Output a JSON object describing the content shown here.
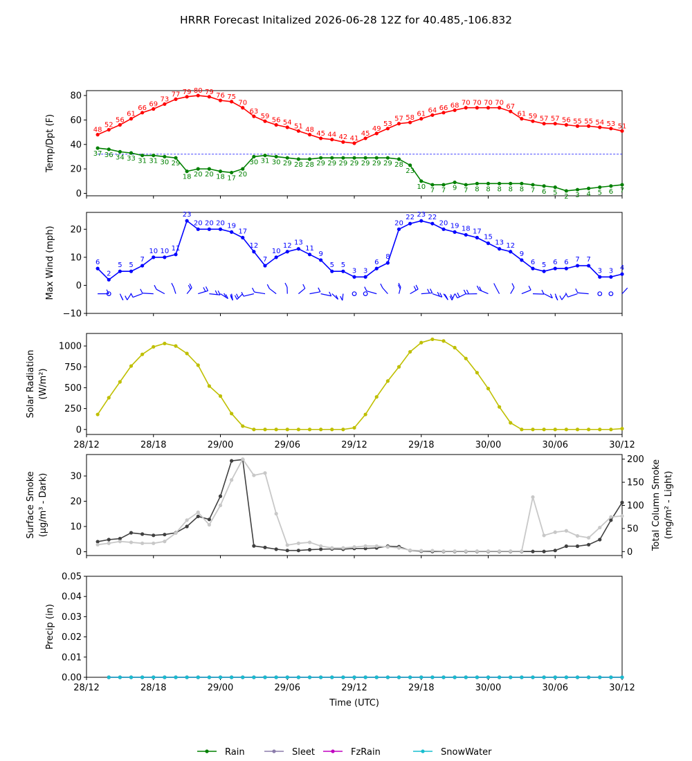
{
  "title": "HRRR Forecast Initalized 2026-06-28 12Z for 40.485,-106.832",
  "x_ticks": [
    "28/12",
    "28/18",
    "29/00",
    "29/06",
    "29/12",
    "29/18",
    "30/00",
    "30/06",
    "30/12"
  ],
  "x_label": "Time (UTC)",
  "legend": [
    {
      "name": "Rain",
      "color": "#008000"
    },
    {
      "name": "Sleet",
      "color": "#8b7cab"
    },
    {
      "name": "FzRain",
      "color": "#c000c0"
    },
    {
      "name": "SnowWater",
      "color": "#17becf"
    }
  ],
  "chart_data": [
    {
      "type": "line",
      "ylabel": "Temp/Dpt (F)",
      "ylim": [
        -2,
        84
      ],
      "yticks": [
        "0",
        "20",
        "40",
        "60",
        "80"
      ],
      "x_hours": [
        1,
        2,
        3,
        4,
        5,
        6,
        7,
        8,
        9,
        10,
        11,
        12,
        13,
        14,
        15,
        16,
        17,
        18,
        19,
        20,
        21,
        22,
        23,
        24,
        25,
        26,
        27,
        28,
        29,
        30,
        31,
        32,
        33,
        34,
        35,
        36,
        37,
        38,
        39,
        40,
        41,
        42,
        43,
        44,
        45,
        46,
        47,
        48
      ],
      "series": [
        {
          "name": "Temp",
          "color": "#ff0000",
          "values": [
            48,
            52,
            56,
            61,
            66,
            69,
            73,
            77,
            79,
            80,
            79,
            76,
            75,
            70,
            63,
            59,
            56,
            54,
            51,
            48,
            45,
            44,
            42,
            41,
            45,
            49,
            53,
            57,
            58,
            61,
            64,
            66,
            68,
            70,
            70,
            70,
            70,
            67,
            61,
            59,
            57,
            57,
            56,
            55,
            55,
            54,
            53,
            51
          ]
        },
        {
          "name": "Dewpoint",
          "color": "#008000",
          "values": [
            37,
            36,
            34,
            33,
            31,
            31,
            30,
            29,
            18,
            20,
            20,
            18,
            17,
            20,
            30,
            31,
            30,
            29,
            28,
            28,
            29,
            29,
            29,
            29,
            29,
            29,
            29,
            28,
            23,
            10,
            7,
            7,
            9,
            7,
            8,
            8,
            8,
            8,
            8,
            7,
            6,
            5,
            2,
            3,
            4,
            5,
            6,
            7
          ]
        }
      ],
      "reference_line": {
        "value": 32,
        "color": "#0000ff"
      }
    },
    {
      "type": "line",
      "ylabel": "Max Wind (mph)",
      "ylim": [
        -10,
        26
      ],
      "yticks": [
        "−10",
        "0",
        "10",
        "20"
      ],
      "x_hours": [
        1,
        2,
        3,
        4,
        5,
        6,
        7,
        8,
        9,
        10,
        11,
        12,
        13,
        14,
        15,
        16,
        17,
        18,
        19,
        20,
        21,
        22,
        23,
        24,
        25,
        26,
        27,
        28,
        29,
        30,
        31,
        32,
        33,
        34,
        35,
        36,
        37,
        38,
        39,
        40,
        41,
        42,
        43,
        44,
        45,
        46,
        47,
        48
      ],
      "series": [
        {
          "name": "Max Wind",
          "color": "#0000ff",
          "values": [
            6,
            2,
            5,
            5,
            7,
            10,
            10,
            11,
            23,
            20,
            20,
            20,
            19,
            17,
            12,
            7,
            10,
            12,
            13,
            11,
            9,
            5,
            5,
            3,
            3,
            6,
            8,
            20,
            22,
            23,
            22,
            20,
            19,
            18,
            17,
            15,
            13,
            12,
            9,
            6,
            5,
            6,
            6,
            7,
            7,
            3,
            3,
            4
          ]
        }
      ],
      "wind_barbs": {
        "level": -3,
        "color": "#0000ff"
      }
    },
    {
      "type": "line",
      "ylabel": "Solar Radiation",
      "ylabel_unit": "(W/m²)",
      "ylim": [
        -60,
        1150
      ],
      "yticks": [
        "0",
        "250",
        "500",
        "750",
        "1000"
      ],
      "x_hours": [
        1,
        2,
        3,
        4,
        5,
        6,
        7,
        8,
        9,
        10,
        11,
        12,
        13,
        14,
        15,
        16,
        17,
        18,
        19,
        20,
        21,
        22,
        23,
        24,
        25,
        26,
        27,
        28,
        29,
        30,
        31,
        32,
        33,
        34,
        35,
        36,
        37,
        38,
        39,
        40,
        41,
        42,
        43,
        44,
        45,
        46,
        47,
        48
      ],
      "series": [
        {
          "name": "Solar Radiation",
          "color": "#bfbf00",
          "values": [
            180,
            380,
            570,
            760,
            900,
            990,
            1030,
            1000,
            910,
            770,
            520,
            400,
            190,
            40,
            0,
            0,
            0,
            0,
            0,
            0,
            0,
            0,
            0,
            20,
            180,
            390,
            580,
            750,
            930,
            1040,
            1080,
            1060,
            980,
            850,
            680,
            490,
            270,
            80,
            0,
            0,
            0,
            0,
            0,
            0,
            0,
            0,
            0,
            10
          ]
        }
      ]
    },
    {
      "type": "line",
      "ylabel": "Surface Smoke",
      "ylabel_unit": "(μg/m³ - Dark)",
      "ylabel_right": "Total Column Smoke",
      "ylabel_right_unit": "(mg/m² - Light)",
      "ylim": [
        -1.5,
        38.5
      ],
      "yticks": [
        "0",
        "10",
        "20",
        "30"
      ],
      "ylim_right": [
        -8.5,
        210
      ],
      "yticks_right": [
        "0",
        "50",
        "100",
        "150",
        "200"
      ],
      "x_hours": [
        1,
        2,
        3,
        4,
        5,
        6,
        7,
        8,
        9,
        10,
        11,
        12,
        13,
        14,
        15,
        16,
        17,
        18,
        19,
        20,
        21,
        22,
        23,
        24,
        25,
        26,
        27,
        28,
        29,
        30,
        31,
        32,
        33,
        34,
        35,
        36,
        37,
        38,
        39,
        40,
        41,
        42,
        43,
        44,
        45,
        46,
        47,
        48
      ],
      "series": [
        {
          "name": "Surface Smoke",
          "axis": "left",
          "color": "#404040",
          "values": [
            4,
            4.8,
            5.2,
            7.5,
            7,
            6.5,
            6.8,
            7.5,
            10,
            14,
            12.8,
            22,
            36,
            36.5,
            2.3,
            1.7,
            1,
            0.5,
            0.5,
            0.8,
            1,
            1.1,
            1,
            1.3,
            1.3,
            1.5,
            2.2,
            2,
            0.5,
            0.2,
            0.1,
            0.1,
            0.1,
            0.1,
            0.1,
            0.1,
            0.1,
            0.1,
            0.1,
            0.1,
            0.1,
            0.5,
            2.2,
            2.2,
            2.8,
            4.8,
            12.5,
            19.5
          ]
        },
        {
          "name": "Total Column Smoke",
          "axis": "right",
          "color": "#c8c8c8",
          "values": [
            15,
            18,
            22,
            20,
            18,
            18,
            22,
            40,
            68,
            85,
            58,
            100,
            155,
            200,
            165,
            170,
            82,
            14,
            18,
            20,
            12,
            8,
            8,
            10,
            12,
            12,
            10,
            8,
            3,
            2,
            2,
            1,
            1,
            1,
            1,
            1,
            1,
            1,
            1,
            118,
            35,
            42,
            45,
            34,
            30,
            52,
            75,
            77
          ]
        }
      ]
    },
    {
      "type": "line",
      "ylabel": "Precip (in)",
      "ylim": [
        0,
        0.05
      ],
      "yticks": [
        "0.00",
        "0.01",
        "0.02",
        "0.03",
        "0.04",
        "0.05"
      ],
      "x_hours": [
        2,
        3,
        4,
        5,
        6,
        7,
        8,
        9,
        10,
        11,
        12,
        13,
        14,
        15,
        16,
        17,
        18,
        19,
        20,
        21,
        22,
        23,
        24,
        25,
        26,
        27,
        28,
        29,
        30,
        31,
        32,
        33,
        34,
        35,
        36,
        37,
        38,
        39,
        40,
        41,
        42,
        43,
        44,
        45,
        46,
        47,
        48
      ],
      "series": [
        {
          "name": "Rain",
          "color": "#008000",
          "values": [
            0,
            0,
            0,
            0,
            0,
            0,
            0,
            0,
            0,
            0,
            0,
            0,
            0,
            0,
            0,
            0,
            0,
            0,
            0,
            0,
            0,
            0,
            0,
            0,
            0,
            0,
            0,
            0,
            0,
            0,
            0,
            0,
            0,
            0,
            0,
            0,
            0,
            0,
            0,
            0,
            0,
            0,
            0,
            0,
            0,
            0,
            0
          ]
        },
        {
          "name": "Sleet",
          "color": "#8b7cab",
          "values": [
            0,
            0,
            0,
            0,
            0,
            0,
            0,
            0,
            0,
            0,
            0,
            0,
            0,
            0,
            0,
            0,
            0,
            0,
            0,
            0,
            0,
            0,
            0,
            0,
            0,
            0,
            0,
            0,
            0,
            0,
            0,
            0,
            0,
            0,
            0,
            0,
            0,
            0,
            0,
            0,
            0,
            0,
            0,
            0,
            0,
            0,
            0
          ]
        },
        {
          "name": "FzRain",
          "color": "#c000c0",
          "values": [
            0,
            0,
            0,
            0,
            0,
            0,
            0,
            0,
            0,
            0,
            0,
            0,
            0,
            0,
            0,
            0,
            0,
            0,
            0,
            0,
            0,
            0,
            0,
            0,
            0,
            0,
            0,
            0,
            0,
            0,
            0,
            0,
            0,
            0,
            0,
            0,
            0,
            0,
            0,
            0,
            0,
            0,
            0,
            0,
            0,
            0,
            0
          ]
        },
        {
          "name": "SnowWater",
          "color": "#17becf",
          "values": [
            0,
            0,
            0,
            0,
            0,
            0,
            0,
            0,
            0,
            0,
            0,
            0,
            0,
            0,
            0,
            0,
            0,
            0,
            0,
            0,
            0,
            0,
            0,
            0,
            0,
            0,
            0,
            0,
            0,
            0,
            0,
            0,
            0,
            0,
            0,
            0,
            0,
            0,
            0,
            0,
            0,
            0,
            0,
            0,
            0,
            0,
            0
          ]
        }
      ]
    }
  ]
}
